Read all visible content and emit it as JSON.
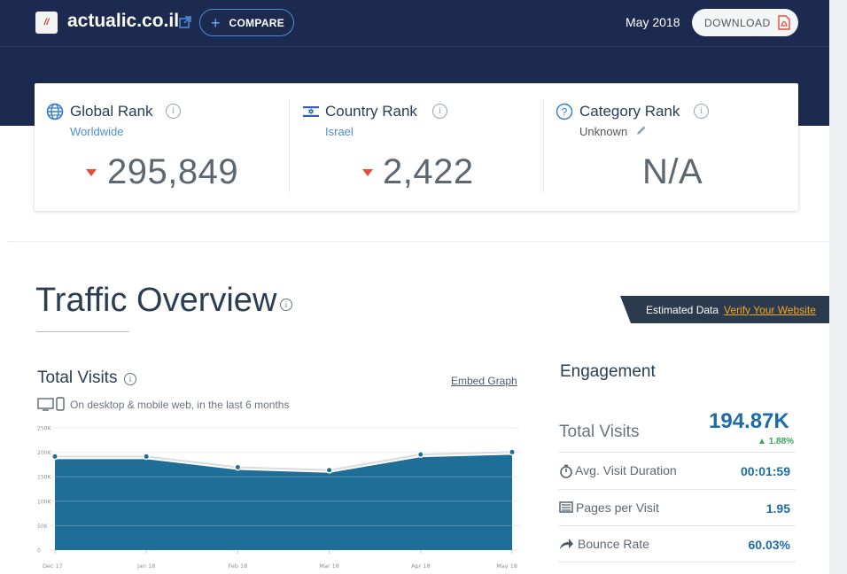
{
  "header": {
    "site_name": "actualic.co.il",
    "compare_label": "COMPARE",
    "date": "May 2018",
    "download_label": "DOWNLOAD"
  },
  "ranks": {
    "global": {
      "title": "Global Rank",
      "sub": "Worldwide",
      "value": "295,849"
    },
    "country": {
      "title": "Country Rank",
      "sub": "Israel",
      "value": "2,422"
    },
    "category": {
      "title": "Category Rank",
      "sub": "Unknown",
      "value": "N/A"
    }
  },
  "traffic": {
    "title": "Traffic Overview",
    "estimated_label": "Estimated Data",
    "verify_label": "Verify Your Website"
  },
  "total_visits": {
    "title": "Total Visits",
    "embed_label": "Embed Graph",
    "devices_text": "On desktop & mobile web, in the last 6 months"
  },
  "chart_data": {
    "type": "area",
    "categories": [
      "Dec 17",
      "Jan 18",
      "Feb 18",
      "Mar 18",
      "Apr 18",
      "May 18"
    ],
    "values": [
      186000,
      186000,
      164000,
      158000,
      190000,
      194870
    ],
    "y_ticks": [
      "0",
      "50K",
      "100K",
      "150K",
      "200K",
      "250K"
    ],
    "ylim": [
      0,
      250000
    ],
    "color": "#1f6e98",
    "grid": true
  },
  "engagement": {
    "title": "Engagement",
    "total_visits_label": "Total Visits",
    "total_visits_value": "194.87K",
    "total_visits_change": "1.88%",
    "rows": [
      {
        "label": "Avg. Visit Duration",
        "value": "00:01:59",
        "icon": "stopwatch-icon"
      },
      {
        "label": "Pages per Visit",
        "value": "1.95",
        "icon": "pages-icon"
      },
      {
        "label": "Bounce Rate",
        "value": "60.03%",
        "icon": "bounce-arrow-icon"
      }
    ]
  }
}
